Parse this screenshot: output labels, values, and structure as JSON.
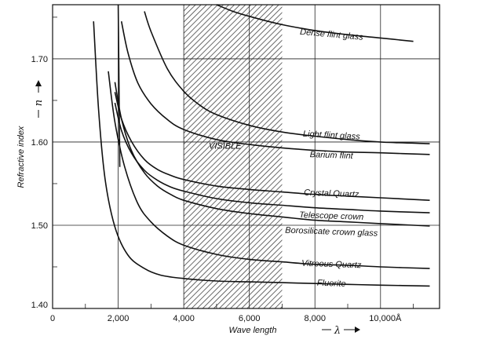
{
  "chart_data": {
    "type": "line",
    "title": "",
    "xlabel": "Wave length",
    "ylabel": "Refractive index",
    "x_symbol": "λ",
    "y_symbol": "n",
    "xlim": [
      0,
      11800
    ],
    "ylim": [
      1.4,
      1.765
    ],
    "x_ticks": [
      0,
      2000,
      4000,
      6000,
      8000,
      10000
    ],
    "x_tick_labels": [
      "0",
      "2,000",
      "4,000",
      "6,000",
      "8,000",
      "10,000Å"
    ],
    "y_ticks": [
      1.4,
      1.5,
      1.6,
      1.7
    ],
    "y_tick_labels": [
      "1.40",
      "1.50",
      "1.60",
      "1.70"
    ],
    "grid": true,
    "visible_band": {
      "label": "VISIBLE",
      "x_start": 4000,
      "x_end": 7000
    },
    "series": [
      {
        "name": "Dense flint glass",
        "x": [
          5000,
          5500,
          6000,
          7000,
          8000,
          9000,
          10000,
          11000
        ],
        "y": [
          1.765,
          1.757,
          1.751,
          1.741,
          1.734,
          1.729,
          1.725,
          1.721
        ]
      },
      {
        "name": "Light flint glass",
        "x": [
          2800,
          3000,
          3500,
          4000,
          4500,
          5000,
          6000,
          7000,
          8000,
          9000,
          10000,
          11500
        ],
        "y": [
          1.757,
          1.733,
          1.688,
          1.661,
          1.644,
          1.633,
          1.62,
          1.612,
          1.607,
          1.603,
          1.6,
          1.598
        ]
      },
      {
        "name": "Barium flint",
        "x": [
          2100,
          2300,
          2600,
          3000,
          3500,
          4000,
          5000,
          6000,
          7000,
          8000,
          9000,
          10000,
          11500
        ],
        "y": [
          1.745,
          1.707,
          1.671,
          1.646,
          1.627,
          1.615,
          1.603,
          1.597,
          1.593,
          1.59,
          1.588,
          1.587,
          1.585
        ]
      },
      {
        "name": "Crystal Quartz",
        "x": [
          1900,
          2100,
          2400,
          2800,
          3200,
          3600,
          4000,
          5000,
          6000,
          7000,
          8000,
          9000,
          10000,
          11500
        ],
        "y": [
          1.66,
          1.628,
          1.601,
          1.579,
          1.567,
          1.56,
          1.555,
          1.547,
          1.543,
          1.54,
          1.537,
          1.535,
          1.533,
          1.53
        ]
      },
      {
        "name": "Telescope crown",
        "x": [
          1900,
          2100,
          2400,
          2800,
          3200,
          3600,
          4000,
          5000,
          6000,
          7000,
          8000,
          9000,
          10000,
          11500
        ],
        "y": [
          1.647,
          1.614,
          1.587,
          1.566,
          1.554,
          1.546,
          1.541,
          1.532,
          1.527,
          1.524,
          1.521,
          1.519,
          1.517,
          1.515
        ]
      },
      {
        "name": "Borosilicate crown glass",
        "x": [
          1900,
          2100,
          2400,
          2800,
          3200,
          3600,
          4000,
          5000,
          6000,
          7000,
          8000,
          9000,
          10000,
          11500
        ],
        "y": [
          1.672,
          1.628,
          1.59,
          1.563,
          1.547,
          1.537,
          1.53,
          1.52,
          1.514,
          1.51,
          1.506,
          1.504,
          1.502,
          1.499
        ]
      },
      {
        "name": "Vitreous Quartz",
        "x": [
          1700,
          1900,
          2200,
          2600,
          3000,
          3500,
          4000,
          5000,
          6000,
          7000,
          8000,
          9000,
          10000,
          11500
        ],
        "y": [
          1.685,
          1.624,
          1.57,
          1.526,
          1.504,
          1.487,
          1.476,
          1.465,
          1.459,
          1.456,
          1.453,
          1.452,
          1.45,
          1.448
        ]
      },
      {
        "name": "Fluorite",
        "x": [
          1250,
          1400,
          1600,
          1900,
          2300,
          2800,
          3300,
          4000,
          5000,
          6000,
          7000,
          8000,
          9000,
          10000,
          11500
        ],
        "y": [
          1.745,
          1.64,
          1.556,
          1.498,
          1.464,
          1.448,
          1.44,
          1.436,
          1.433,
          1.432,
          1.431,
          1.43,
          1.429,
          1.428,
          1.427
        ]
      },
      {
        "name": "",
        "x": [
          2000,
          2010,
          2020,
          2030,
          2040,
          2050
        ],
        "y": [
          1.765,
          1.73,
          1.69,
          1.65,
          1.61,
          1.57
        ]
      }
    ],
    "labels": [
      {
        "text": "Dense flint glass",
        "x": 8500,
        "y": 1.726,
        "rotate": 5
      },
      {
        "text": "Light flint glass",
        "x": 8500,
        "y": 1.605,
        "rotate": 3
      },
      {
        "text": "Barium flint",
        "x": 8500,
        "y": 1.581,
        "rotate": 2
      },
      {
        "text": "Crystal Quartz",
        "x": 8500,
        "y": 1.535,
        "rotate": 2
      },
      {
        "text": "Telescope crown",
        "x": 8500,
        "y": 1.508,
        "rotate": 2
      },
      {
        "text": "Borosilicate crown glass",
        "x": 8500,
        "y": 1.489,
        "rotate": 2
      },
      {
        "text": "Vitreous Quartz",
        "x": 8500,
        "y": 1.45,
        "rotate": 2
      },
      {
        "text": "Fluorite",
        "x": 8500,
        "y": 1.427,
        "rotate": 2
      }
    ]
  }
}
